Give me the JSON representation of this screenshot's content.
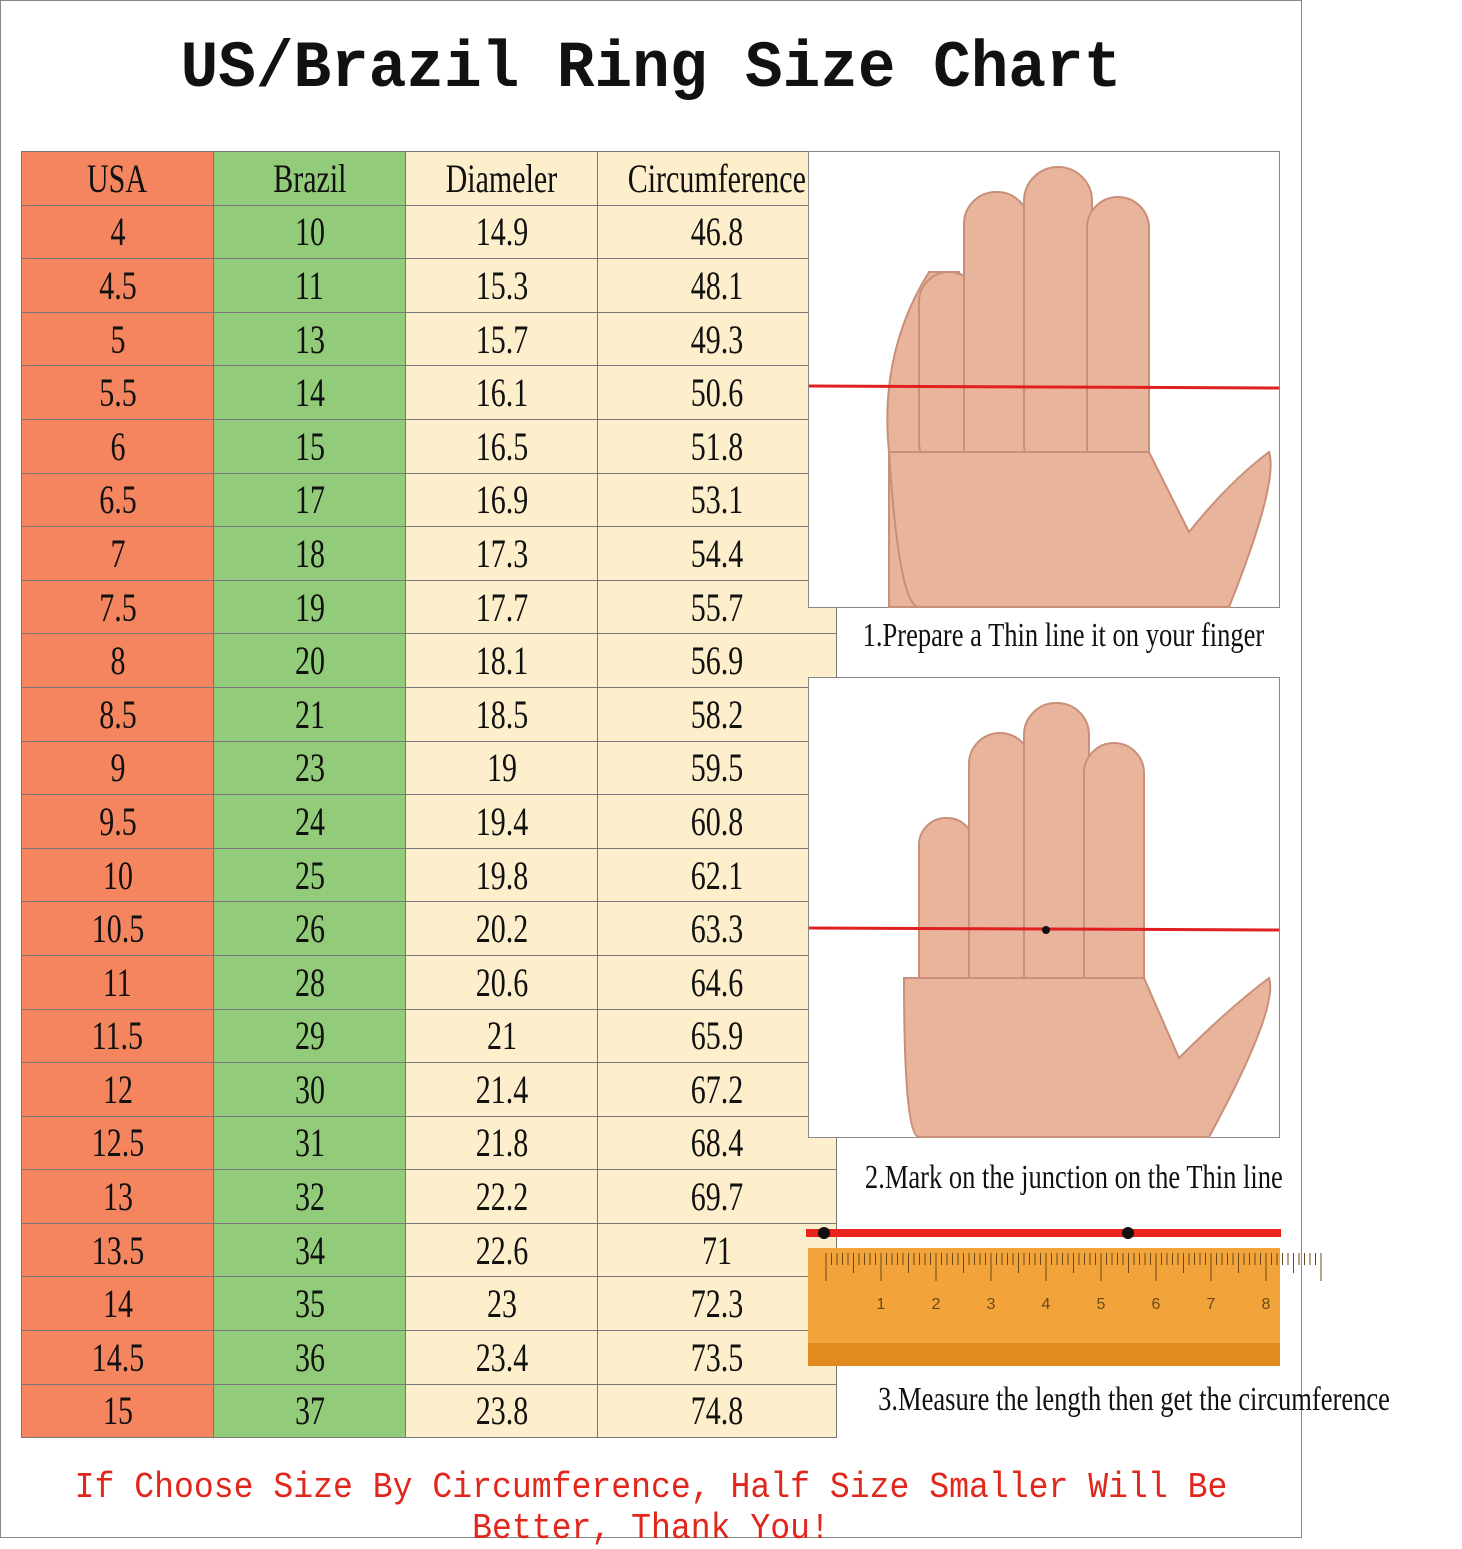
{
  "title": "US/Brazil Ring Size Chart",
  "chart_data": {
    "type": "table",
    "columns": [
      "USA",
      "Brazil",
      "Diameler",
      "Circumference"
    ],
    "rows": [
      [
        "4",
        "10",
        "14.9",
        "46.8"
      ],
      [
        "4.5",
        "11",
        "15.3",
        "48.1"
      ],
      [
        "5",
        "13",
        "15.7",
        "49.3"
      ],
      [
        "5.5",
        "14",
        "16.1",
        "50.6"
      ],
      [
        "6",
        "15",
        "16.5",
        "51.8"
      ],
      [
        "6.5",
        "17",
        "16.9",
        "53.1"
      ],
      [
        "7",
        "18",
        "17.3",
        "54.4"
      ],
      [
        "7.5",
        "19",
        "17.7",
        "55.7"
      ],
      [
        "8",
        "20",
        "18.1",
        "56.9"
      ],
      [
        "8.5",
        "21",
        "18.5",
        "58.2"
      ],
      [
        "9",
        "23",
        "19",
        "59.5"
      ],
      [
        "9.5",
        "24",
        "19.4",
        "60.8"
      ],
      [
        "10",
        "25",
        "19.8",
        "62.1"
      ],
      [
        "10.5",
        "26",
        "20.2",
        "63.3"
      ],
      [
        "11",
        "28",
        "20.6",
        "64.6"
      ],
      [
        "11.5",
        "29",
        "21",
        "65.9"
      ],
      [
        "12",
        "30",
        "21.4",
        "67.2"
      ],
      [
        "12.5",
        "31",
        "21.8",
        "68.4"
      ],
      [
        "13",
        "32",
        "22.2",
        "69.7"
      ],
      [
        "13.5",
        "34",
        "22.6",
        "71"
      ],
      [
        "14",
        "35",
        "23",
        "72.3"
      ],
      [
        "14.5",
        "36",
        "23.4",
        "73.5"
      ],
      [
        "15",
        "37",
        "23.8",
        "74.8"
      ]
    ],
    "column_colors": [
      "#f4855f",
      "#92cb79",
      "#fdefcb",
      "#fdefcb"
    ]
  },
  "steps": [
    {
      "caption": "1.Prepare a Thin line it on your finger"
    },
    {
      "caption": "2.Mark on the junction on the Thin line"
    },
    {
      "caption": "3.Measure the length then get the circumference"
    }
  ],
  "ruler_labels": [
    "1",
    "2",
    "3",
    "4",
    "5",
    "6",
    "7",
    "8"
  ],
  "footer": "If Choose Size By Circumference, Half Size Smaller Will Be Better, Thank You!"
}
